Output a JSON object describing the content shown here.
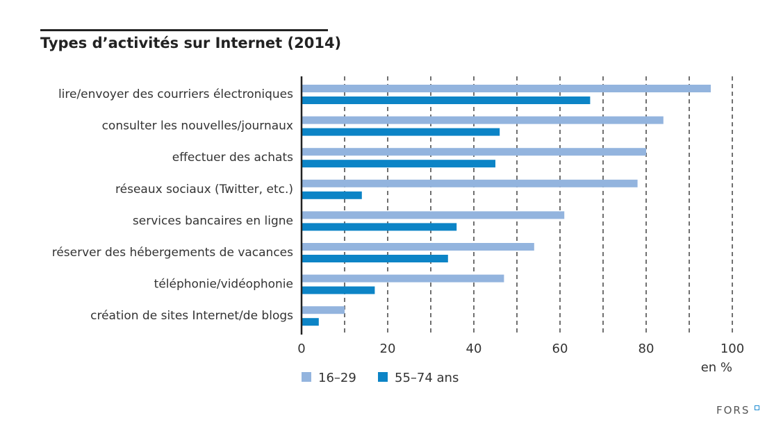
{
  "chart_data": {
    "type": "bar",
    "orientation": "horizontal",
    "title": "Types d’activités sur Internet (2014)",
    "xlabel": "en %",
    "xlim": [
      0,
      100
    ],
    "xticks": [
      0,
      20,
      40,
      60,
      80,
      100
    ],
    "grid": "vertical dashed every 10",
    "categories": [
      "lire/envoyer des courriers électroniques",
      "consulter les nouvelles/journaux",
      "effectuer des achats",
      "réseaux sociaux (Twitter, etc.)",
      "services bancaires en ligne",
      "réserver des hébergements de vacances",
      "téléphonie/vidéophonie",
      "création de sites Internet/de blogs"
    ],
    "series": [
      {
        "name": "16–29",
        "color": "#93b4de",
        "values": [
          95,
          84,
          80,
          78,
          61,
          54,
          47,
          10
        ]
      },
      {
        "name": "55–74 ans",
        "color": "#0c84c6",
        "values": [
          67,
          46,
          45,
          14,
          36,
          34,
          17,
          4
        ]
      }
    ],
    "legend": "bottom-left"
  },
  "logo": "FORS"
}
